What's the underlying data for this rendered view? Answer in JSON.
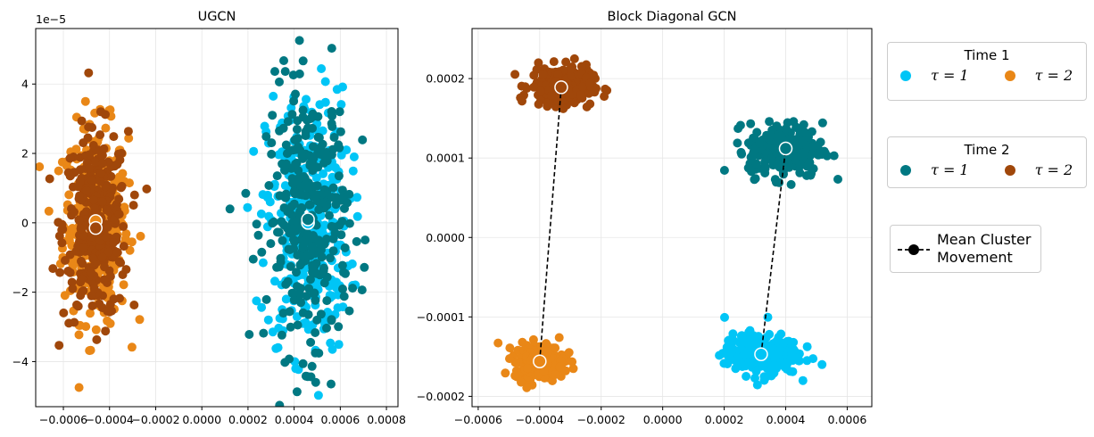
{
  "colors": {
    "time1_tau1": "#00c5f6",
    "time1_tau2": "#e98717",
    "time2_tau1": "#007882",
    "time2_tau2": "#a0470a"
  },
  "chart_data": [
    {
      "type": "scatter",
      "title": "UGCN",
      "offset_text": "1e−5",
      "y_scale": "1e-5",
      "xlim": [
        -0.00072,
        0.00085
      ],
      "ylim": [
        -5.3,
        5.6
      ],
      "x_ticks": [
        -0.0006,
        -0.0004,
        -0.0002,
        0.0,
        0.0002,
        0.0004,
        0.0006,
        0.0008
      ],
      "x_tick_labels": [
        "−0.0006",
        "−0.0004",
        "−0.0002",
        "0.0000",
        "0.0002",
        "0.0004",
        "0.0006",
        "0.0008"
      ],
      "y_ticks": [
        -4,
        -2,
        0,
        2,
        4
      ],
      "y_tick_labels": [
        "−4",
        "−2",
        "0",
        "2",
        "4"
      ],
      "grid": true,
      "clusters": [
        {
          "series": "time1_tau2",
          "center": [
            -0.00046,
            0.0
          ],
          "spread": [
            7e-05,
            1.4
          ],
          "n": 320
        },
        {
          "series": "time2_tau2",
          "center": [
            -0.00046,
            -0.1
          ],
          "spread": [
            7e-05,
            1.35
          ],
          "n": 320
        },
        {
          "series": "time1_tau1",
          "center": [
            0.00046,
            0.0
          ],
          "spread": [
            9e-05,
            1.9
          ],
          "n": 320
        },
        {
          "series": "time2_tau1",
          "center": [
            0.00046,
            0.1
          ],
          "spread": [
            9e-05,
            1.9
          ],
          "n": 320
        }
      ],
      "means": [
        {
          "series": "time1_tau2",
          "x": -0.00046,
          "y": 0.05
        },
        {
          "series": "time2_tau2",
          "x": -0.00046,
          "y": -0.15
        },
        {
          "series": "time1_tau1",
          "x": 0.00046,
          "y": 0.0
        },
        {
          "series": "time2_tau1",
          "x": 0.00046,
          "y": 0.1
        }
      ]
    },
    {
      "type": "scatter",
      "title": "Block Diagonal GCN",
      "xlim": [
        -0.00062,
        0.00068
      ],
      "ylim": [
        -0.000213,
        0.000263
      ],
      "x_ticks": [
        -0.0006,
        -0.0004,
        -0.0002,
        0.0,
        0.0002,
        0.0004,
        0.0006
      ],
      "x_tick_labels": [
        "−0.0006",
        "−0.0004",
        "−0.0002",
        "0.0000",
        "0.0002",
        "0.0004",
        "0.0006"
      ],
      "y_ticks": [
        -0.0002,
        -0.0001,
        0.0,
        0.0001,
        0.0002
      ],
      "y_tick_labels": [
        "−0.0002",
        "−0.0001",
        "0.0000",
        "0.0001",
        "0.0002"
      ],
      "grid": true,
      "clusters": [
        {
          "series": "time2_tau2",
          "center": [
            -0.00033,
            0.00019
          ],
          "spread": [
            5e-05,
            1.2e-05
          ],
          "n": 260
        },
        {
          "series": "time2_tau1",
          "center": [
            0.0004,
            0.00011
          ],
          "spread": [
            6e-05,
            1.7e-05
          ],
          "n": 260
        },
        {
          "series": "time1_tau2",
          "center": [
            -0.0004,
            -0.000156
          ],
          "spread": [
            4e-05,
            1.1e-05
          ],
          "n": 260
        },
        {
          "series": "time1_tau1",
          "center": [
            0.00032,
            -0.000147
          ],
          "spread": [
            6e-05,
            1.3e-05
          ],
          "n": 260
        }
      ],
      "means": [
        {
          "series": "time1_tau2",
          "x": -0.0004,
          "y": -0.000156
        },
        {
          "series": "time2_tau2",
          "x": -0.00033,
          "y": 0.000189
        },
        {
          "series": "time1_tau1",
          "x": 0.00032,
          "y": -0.000147
        },
        {
          "series": "time2_tau1",
          "x": 0.0004,
          "y": 0.000112
        }
      ],
      "movements": [
        {
          "from": [
            -0.0004,
            -0.000156
          ],
          "to": [
            -0.00033,
            0.000189
          ]
        },
        {
          "from": [
            0.00032,
            -0.000147
          ],
          "to": [
            0.0004,
            0.000112
          ]
        }
      ]
    }
  ],
  "legends": {
    "time1": {
      "title": "Time 1",
      "tau1": "τ = 1",
      "tau2": "τ = 2"
    },
    "time2": {
      "title": "Time 2",
      "tau1": "τ = 1",
      "tau2": "τ = 2"
    },
    "movement": {
      "line1": "Mean Cluster",
      "line2": "Movement"
    }
  }
}
